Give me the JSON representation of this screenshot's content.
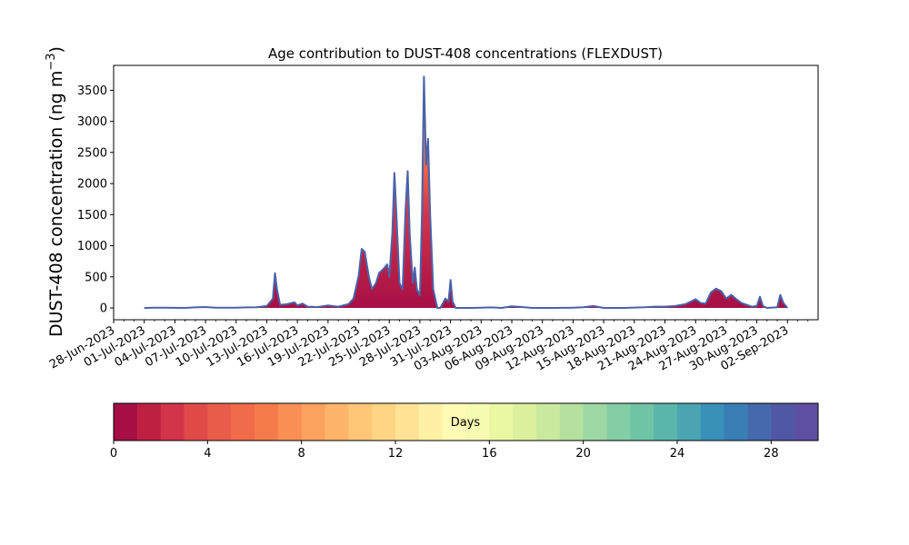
{
  "chart_data": {
    "type": "area",
    "title": "Age contribution to DUST-408 concentrations (FLEXDUST)",
    "ylabel": "DUST-408 concentration (ng m",
    "ylabel_sup": "−3",
    "ylabel_close": ")",
    "xlabel": "",
    "ylim": [
      -190,
      3900
    ],
    "yticks": [
      0,
      500,
      1000,
      1500,
      2000,
      2500,
      3000,
      3500
    ],
    "xlim": [
      "2023-06-28",
      "2023-09-05"
    ],
    "xticks": [
      "28-Jun-2023",
      "01-Jul-2023",
      "04-Jul-2023",
      "07-Jul-2023",
      "10-Jul-2023",
      "13-Jul-2023",
      "16-Jul-2023",
      "19-Jul-2023",
      "22-Jul-2023",
      "25-Jul-2023",
      "28-Jul-2023",
      "31-Jul-2023",
      "03-Aug-2023",
      "06-Aug-2023",
      "09-Aug-2023",
      "12-Aug-2023",
      "15-Aug-2023",
      "18-Aug-2023",
      "21-Aug-2023",
      "24-Aug-2023",
      "27-Aug-2023",
      "30-Aug-2023",
      "02-Sep-2023"
    ],
    "grid": false,
    "series_total": [
      [
        "2023-07-01",
        0
      ],
      [
        "2023-07-02",
        5
      ],
      [
        "2023-07-03",
        5
      ],
      [
        "2023-07-04",
        2
      ],
      [
        "2023-07-05",
        0
      ],
      [
        "2023-07-06",
        8
      ],
      [
        "2023-07-07",
        15
      ],
      [
        "2023-07-08",
        5
      ],
      [
        "2023-07-09",
        3
      ],
      [
        "2023-07-10",
        5
      ],
      [
        "2023-07-11",
        8
      ],
      [
        "2023-07-12",
        10
      ],
      [
        "2023-07-13",
        30
      ],
      [
        "2023-07-13.6",
        150
      ],
      [
        "2023-07-13.8",
        560
      ],
      [
        "2023-07-14",
        300
      ],
      [
        "2023-07-14.3",
        50
      ],
      [
        "2023-07-15",
        60
      ],
      [
        "2023-07-15.7",
        90
      ],
      [
        "2023-07-16",
        40
      ],
      [
        "2023-07-16.5",
        70
      ],
      [
        "2023-07-17",
        20
      ],
      [
        "2023-07-18",
        15
      ],
      [
        "2023-07-19",
        40
      ],
      [
        "2023-07-20",
        20
      ],
      [
        "2023-07-21",
        60
      ],
      [
        "2023-07-21.5",
        150
      ],
      [
        "2023-07-22",
        520
      ],
      [
        "2023-07-22.3",
        950
      ],
      [
        "2023-07-22.6",
        900
      ],
      [
        "2023-07-23",
        500
      ],
      [
        "2023-07-23.3",
        300
      ],
      [
        "2023-07-23.7",
        400
      ],
      [
        "2023-07-24",
        560
      ],
      [
        "2023-07-24.5",
        640
      ],
      [
        "2023-07-24.8",
        700
      ],
      [
        "2023-07-25",
        500
      ],
      [
        "2023-07-25.3",
        1200
      ],
      [
        "2023-07-25.5",
        2170
      ],
      [
        "2023-07-25.7",
        1500
      ],
      [
        "2023-07-26",
        400
      ],
      [
        "2023-07-26.3",
        300
      ],
      [
        "2023-07-26.6",
        1600
      ],
      [
        "2023-07-26.8",
        2200
      ],
      [
        "2023-07-27",
        1200
      ],
      [
        "2023-07-27.3",
        400
      ],
      [
        "2023-07-27.5",
        650
      ],
      [
        "2023-07-27.7",
        300
      ],
      [
        "2023-07-28",
        200
      ],
      [
        "2023-07-28.2",
        1500
      ],
      [
        "2023-07-28.4",
        3720
      ],
      [
        "2023-07-28.6",
        2300
      ],
      [
        "2023-07-28.8",
        2720
      ],
      [
        "2023-07-29",
        1500
      ],
      [
        "2023-07-29.3",
        300
      ],
      [
        "2023-07-29.7",
        0
      ],
      [
        "2023-07-30",
        0
      ],
      [
        "2023-07-30.5",
        150
      ],
      [
        "2023-07-30.8",
        100
      ],
      [
        "2023-07-31",
        450
      ],
      [
        "2023-07-31.2",
        100
      ],
      [
        "2023-07-31.5",
        0
      ],
      [
        "2023-08-01",
        0
      ],
      [
        "2023-08-02",
        0
      ],
      [
        "2023-08-03",
        3
      ],
      [
        "2023-08-04",
        8
      ],
      [
        "2023-08-05",
        0
      ],
      [
        "2023-08-06",
        25
      ],
      [
        "2023-08-07",
        15
      ],
      [
        "2023-08-08",
        0
      ],
      [
        "2023-08-10",
        0
      ],
      [
        "2023-08-12",
        5
      ],
      [
        "2023-08-13",
        10
      ],
      [
        "2023-08-14",
        30
      ],
      [
        "2023-08-15",
        0
      ],
      [
        "2023-08-17",
        0
      ],
      [
        "2023-08-19",
        10
      ],
      [
        "2023-08-20",
        20
      ],
      [
        "2023-08-21",
        20
      ],
      [
        "2023-08-22",
        30
      ],
      [
        "2023-08-23",
        60
      ],
      [
        "2023-08-24",
        140
      ],
      [
        "2023-08-24.5",
        80
      ],
      [
        "2023-08-25",
        70
      ],
      [
        "2023-08-25.5",
        250
      ],
      [
        "2023-08-26",
        310
      ],
      [
        "2023-08-26.5",
        270
      ],
      [
        "2023-08-27",
        150
      ],
      [
        "2023-08-27.5",
        210
      ],
      [
        "2023-08-28",
        140
      ],
      [
        "2023-08-28.5",
        80
      ],
      [
        "2023-08-29",
        50
      ],
      [
        "2023-08-29.5",
        20
      ],
      [
        "2023-08-30",
        30
      ],
      [
        "2023-08-30.3",
        180
      ],
      [
        "2023-08-30.6",
        30
      ],
      [
        "2023-08-31",
        0
      ],
      [
        "2023-09-01",
        10
      ],
      [
        "2023-09-01.3",
        210
      ],
      [
        "2023-09-01.6",
        80
      ],
      [
        "2023-09-02",
        0
      ]
    ],
    "colorbar": {
      "label": "Days",
      "range": [
        0,
        30
      ],
      "ticks": [
        0,
        4,
        8,
        12,
        16,
        20,
        24,
        28
      ],
      "colors": [
        "#a50f45",
        "#be2042",
        "#d2344a",
        "#e04b48",
        "#e85d4a",
        "#f06b4a",
        "#f57b4b",
        "#f98f54",
        "#fba25e",
        "#fdb468",
        "#fec675",
        "#fed585",
        "#fee395",
        "#fff0a6",
        "#fffab4",
        "#f6fbb2",
        "#eaf7a3",
        "#dcf09e",
        "#c9e99e",
        "#b4e0a0",
        "#9dd7a3",
        "#84cda5",
        "#6fc4a6",
        "#5ab6aa",
        "#4aa4b1",
        "#3990b8",
        "#3a7eb6",
        "#4569ac",
        "#5157a4",
        "#5e4fa2"
      ]
    },
    "outline_color": "#4a62a8"
  }
}
